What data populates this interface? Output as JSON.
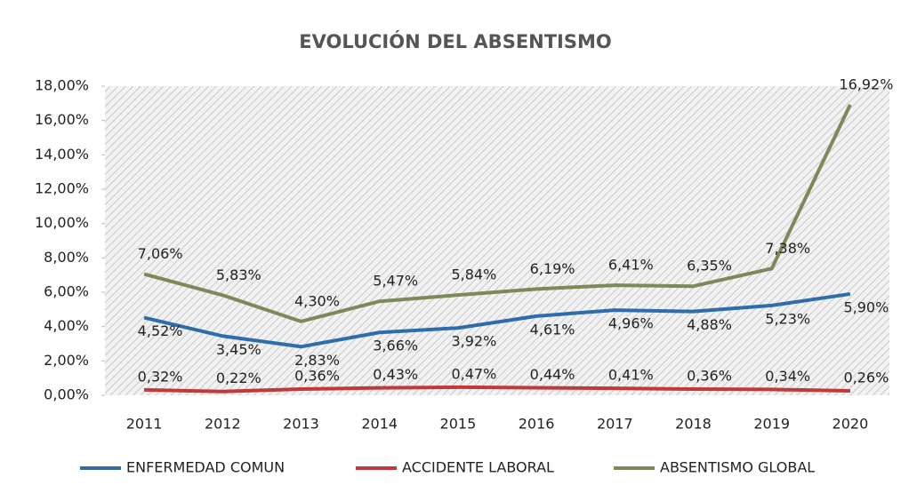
{
  "chart_data": {
    "type": "line",
    "title": "EVOLUCIÓN DEL ABSENTISMO",
    "categories": [
      "2011",
      "2012",
      "2013",
      "2014",
      "2015",
      "2016",
      "2017",
      "2018",
      "2019",
      "2020"
    ],
    "series": [
      {
        "name": "ENFERMEDAD COMUN",
        "color": "#2e6dab",
        "values": [
          4.52,
          3.45,
          2.83,
          3.66,
          3.92,
          4.61,
          4.96,
          4.88,
          5.23,
          5.9
        ],
        "value_labels": [
          "4,52%",
          "3,45%",
          "2,83%",
          "3,66%",
          "3,92%",
          "4,61%",
          "4,96%",
          "4,88%",
          "5,23%",
          "5,90%"
        ]
      },
      {
        "name": "ACCIDENTE LABORAL",
        "color": "#c0393b",
        "values": [
          0.32,
          0.22,
          0.36,
          0.43,
          0.47,
          0.44,
          0.41,
          0.36,
          0.34,
          0.26
        ],
        "value_labels": [
          "0,32%",
          "0,22%",
          "0,36%",
          "0,43%",
          "0,47%",
          "0,44%",
          "0,41%",
          "0,36%",
          "0,34%",
          "0,26%"
        ]
      },
      {
        "name": "ABSENTISMO GLOBAL",
        "color": "#7b8a58",
        "values": [
          7.06,
          5.83,
          4.3,
          5.47,
          5.84,
          6.19,
          6.41,
          6.35,
          7.38,
          16.92
        ],
        "value_labels": [
          "7,06%",
          "5,83%",
          "4,30%",
          "5,47%",
          "5,84%",
          "6,19%",
          "6,41%",
          "6,35%",
          "7,38%",
          "16,92%"
        ]
      }
    ],
    "ylim": [
      0,
      18
    ],
    "yticks": [
      {
        "value": 0,
        "label": "0,00%"
      },
      {
        "value": 2,
        "label": "2,00%"
      },
      {
        "value": 4,
        "label": "4,00%"
      },
      {
        "value": 6,
        "label": "6,00%"
      },
      {
        "value": 8,
        "label": "8,00%"
      },
      {
        "value": 10,
        "label": "10,00%"
      },
      {
        "value": 12,
        "label": "12,00%"
      },
      {
        "value": 14,
        "label": "14,00%"
      },
      {
        "value": 16,
        "label": "16,00%"
      },
      {
        "value": 18,
        "label": "18,00%"
      }
    ],
    "legend": "bottom"
  }
}
